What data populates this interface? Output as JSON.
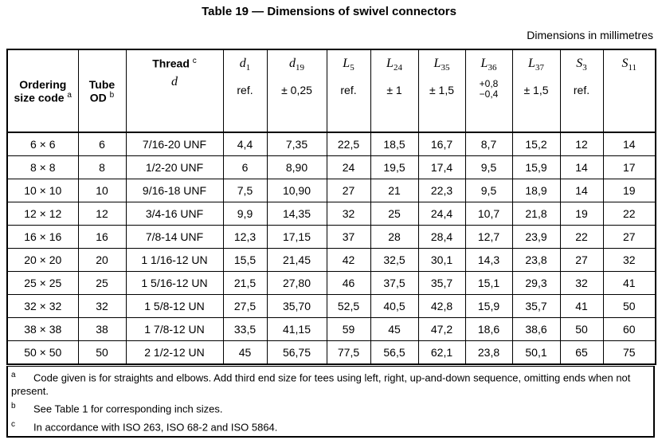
{
  "title": "Table 19 — Dimensions of swivel connectors",
  "units_note": "Dimensions in millimetres",
  "header": {
    "ordering": {
      "line1": "Ordering",
      "line2": "size code",
      "mark": "a"
    },
    "tube": {
      "line1": "Tube",
      "line2": "OD",
      "mark": "b"
    },
    "thread": {
      "label": "Thread",
      "mark": "c",
      "symbol": "d"
    },
    "cols": [
      {
        "sym": "d",
        "sub": "1",
        "note": "ref."
      },
      {
        "sym": "d",
        "sub": "19",
        "note": "± 0,25"
      },
      {
        "sym": "L",
        "sub": "5",
        "note": "ref."
      },
      {
        "sym": "L",
        "sub": "24",
        "note": "± 1"
      },
      {
        "sym": "L",
        "sub": "35",
        "note": "± 1,5"
      },
      {
        "sym": "L",
        "sub": "36",
        "tol_upper": "+0,8",
        "tol_lower": "−0,4"
      },
      {
        "sym": "L",
        "sub": "37",
        "note": "± 1,5"
      },
      {
        "sym": "S",
        "sub": "3",
        "note": "ref."
      },
      {
        "sym": "S",
        "sub": "11",
        "note": ""
      }
    ]
  },
  "rows": [
    [
      "6 × 6",
      "6",
      "7/16-20 UNF",
      "4,4",
      "7,35",
      "22,5",
      "18,5",
      "16,7",
      "8,7",
      "15,2",
      "12",
      "14"
    ],
    [
      "8 × 8",
      "8",
      "1/2-20 UNF",
      "6",
      "8,90",
      "24",
      "19,5",
      "17,4",
      "9,5",
      "15,9",
      "14",
      "17"
    ],
    [
      "10 × 10",
      "10",
      "9/16-18 UNF",
      "7,5",
      "10,90",
      "27",
      "21",
      "22,3",
      "9,5",
      "18,9",
      "14",
      "19"
    ],
    [
      "12 × 12",
      "12",
      "3/4-16 UNF",
      "9,9",
      "14,35",
      "32",
      "25",
      "24,4",
      "10,7",
      "21,8",
      "19",
      "22"
    ],
    [
      "16 × 16",
      "16",
      "7/8-14 UNF",
      "12,3",
      "17,15",
      "37",
      "28",
      "28,4",
      "12,7",
      "23,9",
      "22",
      "27"
    ],
    [
      "20 × 20",
      "20",
      "1 1/16-12 UN",
      "15,5",
      "21,45",
      "42",
      "32,5",
      "30,1",
      "14,3",
      "23,8",
      "27",
      "32"
    ],
    [
      "25 × 25",
      "25",
      "1 5/16-12 UN",
      "21,5",
      "27,80",
      "46",
      "37,5",
      "35,7",
      "15,1",
      "29,3",
      "32",
      "41"
    ],
    [
      "32 × 32",
      "32",
      "1 5/8-12 UN",
      "27,5",
      "35,70",
      "52,5",
      "40,5",
      "42,8",
      "15,9",
      "35,7",
      "41",
      "50"
    ],
    [
      "38 × 38",
      "38",
      "1 7/8-12 UN",
      "33,5",
      "41,15",
      "59",
      "45",
      "47,2",
      "18,6",
      "38,6",
      "50",
      "60"
    ],
    [
      "50 × 50",
      "50",
      "2 1/2-12 UN",
      "45",
      "56,75",
      "77,5",
      "56,5",
      "62,1",
      "23,8",
      "50,1",
      "65",
      "75"
    ]
  ],
  "footnotes": [
    {
      "mark": "a",
      "text": "Code given is for straights and elbows. Add third end size for tees using left, right, up-and-down sequence, omitting ends when not present."
    },
    {
      "mark": "b",
      "text": "See Table 1 for corresponding inch sizes."
    },
    {
      "mark": "c",
      "text": "In accordance with ISO 263, ISO 68-2 and ISO 5864."
    }
  ]
}
